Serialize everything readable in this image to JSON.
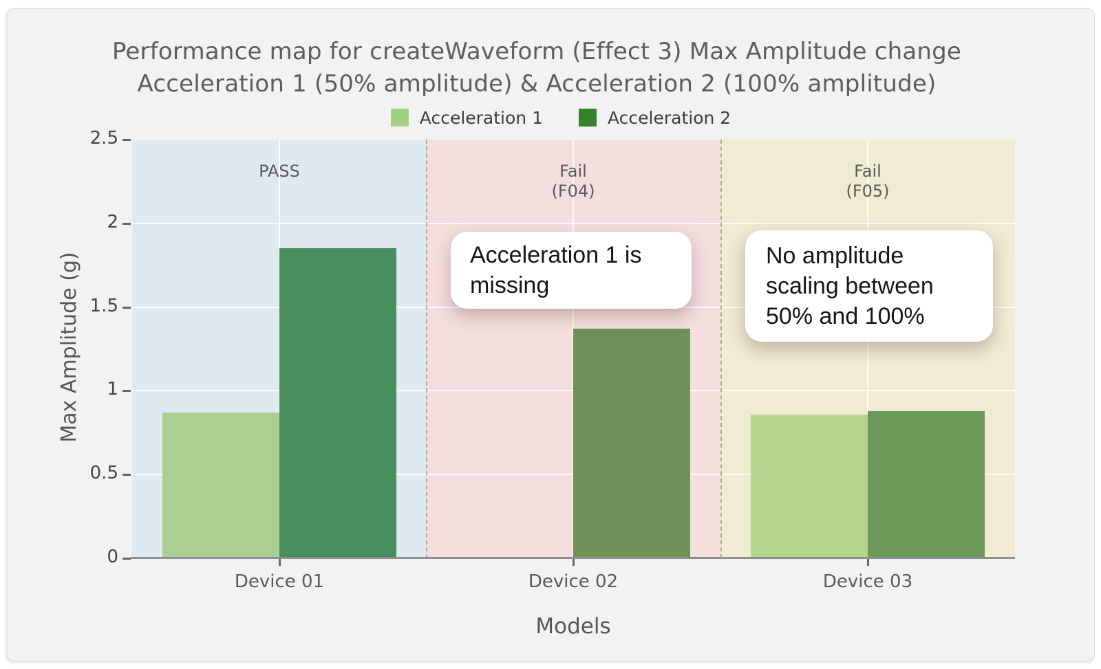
{
  "page": {
    "background": "#ffffff",
    "panel_background": "#f2f2f2",
    "panel_border": "#dcdcdc"
  },
  "title": {
    "line1": "Performance map for createWaveform (Effect 3) Max Amplitude change",
    "line2": "Acceleration 1 (50% amplitude) & Acceleration 2 (100% amplitude)"
  },
  "legend": {
    "items": [
      {
        "label": "Acceleration 1",
        "color": "#a2d184"
      },
      {
        "label": "Acceleration 2",
        "color": "#36812e"
      }
    ]
  },
  "chart_data": {
    "type": "bar",
    "title": "Performance map for createWaveform (Effect 3) Max Amplitude change — Acceleration 1 (50% amplitude) & Acceleration 2 (100% amplitude)",
    "categories": [
      "Device 01",
      "Device 02",
      "Device 03"
    ],
    "series": [
      {
        "name": "Acceleration 1",
        "color": "#a2d184",
        "values": [
          0.87,
          null,
          0.86
        ]
      },
      {
        "name": "Acceleration 2",
        "color": "#36812e",
        "values": [
          1.85,
          1.37,
          0.88
        ]
      }
    ],
    "xlabel": "Models",
    "ylabel": "Max Amplitude (g)",
    "ylim": [
      0,
      2.5
    ],
    "yticks": [
      0,
      0.5,
      1,
      1.5,
      2,
      2.5
    ],
    "ytick_labels": [
      "0",
      "0.5",
      "1",
      "1.5",
      "2",
      "2.5"
    ],
    "grid": true,
    "legend_position": "top",
    "zones": [
      {
        "label_lines": [
          "PASS",
          ""
        ],
        "color": "#dfe9f1"
      },
      {
        "label_lines": [
          "Fail",
          "(F04)"
        ],
        "color": "#f4dede"
      },
      {
        "label_lines": [
          "Fail",
          "(F05)"
        ],
        "color": "#f0ebd3"
      }
    ],
    "zone_boundary_color": "#b5a7a2",
    "bar_render_colors": [
      [
        "#abce92",
        "#4a8e5e"
      ],
      [
        null,
        "#6f9058"
      ],
      [
        "#b5d48e",
        "#6a9958"
      ]
    ],
    "annotations": [
      {
        "text_lines": [
          "Acceleration 1 is",
          "missing",
          ""
        ]
      },
      {
        "text_lines": [
          "No amplitude",
          "scaling between",
          "50% and 100%"
        ]
      }
    ]
  }
}
